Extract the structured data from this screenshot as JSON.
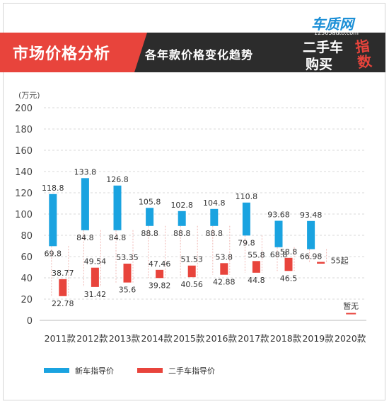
{
  "header": {
    "title": "市场价格分析",
    "subtitle": "各年款价格变化趋势",
    "brand_name": "车质网",
    "brand_url": "12365auto.com",
    "brand_line1": "二手车",
    "brand_line2": "购买",
    "brand_mark": "指数"
  },
  "colors": {
    "new": "#1aa3e0",
    "used": "#e8443c",
    "accent": "#e8443c",
    "header_bg": "#2c2c2c"
  },
  "chart_data": {
    "type": "bar",
    "ylabel": "(万元)",
    "ylim": [
      0,
      200
    ],
    "yticks": [
      0,
      20,
      40,
      60,
      80,
      100,
      120,
      140,
      160,
      180,
      200
    ],
    "grid": true,
    "legend_position": "bottom",
    "categories": [
      "2011款",
      "2012款",
      "2013款",
      "2014款",
      "2015款",
      "2016款",
      "2017款",
      "2018款",
      "2019款",
      "2020款"
    ],
    "series": [
      {
        "name": "新车指导价",
        "color": "#1aa3e0",
        "low": [
          69.8,
          84.8,
          84.8,
          88.8,
          88.8,
          88.8,
          79.8,
          68.8,
          66.98,
          null
        ],
        "high": [
          118.8,
          133.8,
          126.8,
          105.8,
          102.8,
          104.8,
          110.8,
          93.68,
          93.48,
          null
        ],
        "low_labels": [
          "69.8",
          "84.8",
          "84.8",
          "88.8",
          "88.8",
          "88.8",
          "79.8",
          "68.8",
          "66.98",
          null
        ],
        "high_labels": [
          "118.8",
          "133.8",
          "126.8",
          "105.8",
          "102.8",
          "104.8",
          "110.8",
          "93.68",
          "93.48",
          null
        ]
      },
      {
        "name": "二手车指导价",
        "color": "#e8443c",
        "low": [
          22.78,
          31.42,
          35.6,
          39.82,
          40.56,
          42.88,
          44.8,
          46.5,
          55,
          null
        ],
        "high": [
          38.77,
          49.54,
          53.35,
          47.46,
          51.53,
          53.8,
          55.8,
          58.8,
          55,
          null
        ],
        "low_labels": [
          "22.78",
          "31.42",
          "35.6",
          "39.82",
          "40.56",
          "42.88",
          "44.8",
          "46.5",
          "55起",
          "暂无"
        ],
        "high_labels": [
          "38.77",
          "49.54",
          "53.35",
          "47.46",
          "51.53",
          "53.8",
          "55.8",
          "58.8",
          null,
          null
        ]
      }
    ]
  }
}
